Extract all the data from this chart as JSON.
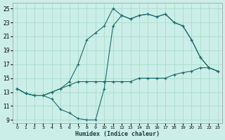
{
  "xlabel": "Humidex (Indice chaleur)",
  "bg_color": "#cceee8",
  "grid_color": "#aaddcc",
  "line_color": "#1a6b6b",
  "xlim": [
    -0.5,
    23.5
  ],
  "ylim": [
    8.5,
    25.8
  ],
  "xticks": [
    0,
    1,
    2,
    3,
    4,
    5,
    6,
    7,
    8,
    9,
    10,
    11,
    12,
    13,
    14,
    15,
    16,
    17,
    18,
    19,
    20,
    21,
    22,
    23
  ],
  "yticks": [
    9,
    11,
    13,
    15,
    17,
    19,
    21,
    23,
    25
  ],
  "line1_x": [
    0,
    1,
    2,
    3,
    4,
    5,
    6,
    7,
    8,
    9,
    10,
    11,
    12,
    13,
    14,
    15,
    16,
    17,
    18,
    19,
    20,
    21,
    22,
    23
  ],
  "line1_y": [
    13.5,
    12.8,
    12.5,
    12.5,
    13.0,
    13.5,
    14.0,
    14.5,
    14.5,
    14.5,
    14.5,
    14.5,
    14.5,
    14.5,
    15.0,
    15.0,
    15.0,
    15.0,
    15.5,
    15.8,
    16.0,
    16.5,
    16.5,
    16.0
  ],
  "line2_x": [
    0,
    1,
    2,
    3,
    4,
    5,
    6,
    7,
    8,
    9,
    10,
    11,
    12,
    13,
    14,
    15,
    16,
    17,
    18,
    19,
    20,
    21,
    22,
    23
  ],
  "line2_y": [
    13.5,
    12.8,
    12.5,
    12.5,
    13.0,
    13.5,
    14.5,
    17.0,
    20.5,
    21.5,
    22.5,
    25.0,
    24.0,
    23.5,
    24.0,
    24.2,
    23.8,
    24.2,
    23.0,
    22.5,
    20.5,
    18.0,
    16.5,
    16.0
  ],
  "line3_x": [
    0,
    1,
    2,
    3,
    4,
    5,
    6,
    7,
    8,
    9,
    10,
    11,
    12,
    13,
    14,
    15,
    16,
    17,
    18,
    19,
    20,
    21,
    22,
    23
  ],
  "line3_y": [
    13.5,
    12.8,
    12.5,
    12.5,
    12.0,
    10.5,
    10.0,
    9.2,
    9.0,
    9.0,
    13.5,
    22.5,
    24.0,
    23.5,
    24.0,
    24.2,
    23.8,
    24.2,
    23.0,
    22.5,
    20.5,
    18.0,
    16.5,
    16.0
  ]
}
